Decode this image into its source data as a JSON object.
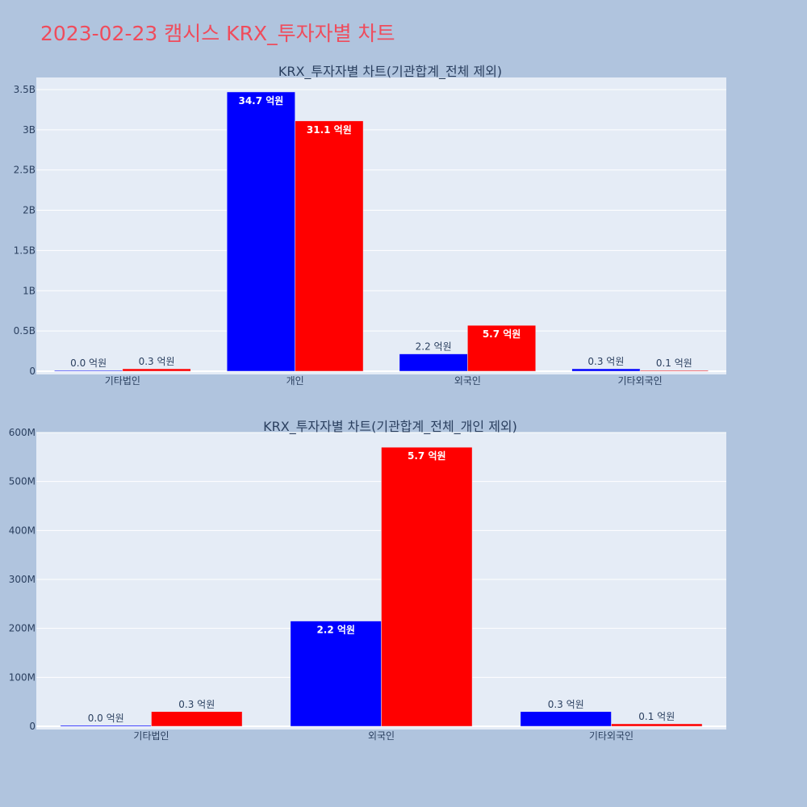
{
  "page": {
    "title": "2023-02-23 캠시스 KRX_투자자별 차트"
  },
  "colors": {
    "buy": "#0000ff",
    "sell": "#ff0000",
    "plot_bg": "#e5ecf6",
    "grid": "#ffffff",
    "page_bg": "#b0c4de",
    "title": "#ef4c5c",
    "text": "#2a3f5f"
  },
  "chart_data": [
    {
      "type": "bar",
      "title": "KRX_투자자별 차트(기관합계_전체 제외)",
      "categories": [
        "기타법인",
        "개인",
        "외국인",
        "기타외국인"
      ],
      "series": [
        {
          "color": "#0000ff",
          "values": [
            2000000,
            3470000000,
            215000000,
            30000000
          ],
          "labels": [
            "0.0 억원",
            "34.7 억원",
            "2.2 억원",
            "0.3 억원"
          ]
        },
        {
          "color": "#ff0000",
          "values": [
            30000000,
            3110000000,
            570000000,
            5000000
          ],
          "labels": [
            "0.3 억원",
            "31.1 억원",
            "5.7 억원",
            "0.1 억원"
          ]
        }
      ],
      "ylim": [
        0,
        3650000000
      ],
      "yticks": [
        0,
        500000000,
        1000000000,
        1500000000,
        2000000000,
        2500000000,
        3000000000,
        3500000000
      ],
      "ytick_labels": [
        "0",
        "0.5B",
        "1B",
        "1.5B",
        "2B",
        "2.5B",
        "3B",
        "3.5B"
      ],
      "grid": true
    },
    {
      "type": "bar",
      "title": "KRX_투자자별 차트(기관합계_전체_개인 제외)",
      "categories": [
        "기타법인",
        "외국인",
        "기타외국인"
      ],
      "series": [
        {
          "color": "#0000ff",
          "values": [
            2000000,
            215000000,
            30000000
          ],
          "labels": [
            "0.0 억원",
            "2.2 억원",
            "0.3 억원"
          ]
        },
        {
          "color": "#ff0000",
          "values": [
            30000000,
            570000000,
            5000000
          ],
          "labels": [
            "0.3 억원",
            "5.7 억원",
            "0.1 억원"
          ]
        }
      ],
      "ylim": [
        0,
        600000000
      ],
      "yticks": [
        0,
        100000000,
        200000000,
        300000000,
        400000000,
        500000000,
        600000000
      ],
      "ytick_labels": [
        "0",
        "100M",
        "200M",
        "300M",
        "400M",
        "500M",
        "600M"
      ],
      "grid": true
    }
  ]
}
